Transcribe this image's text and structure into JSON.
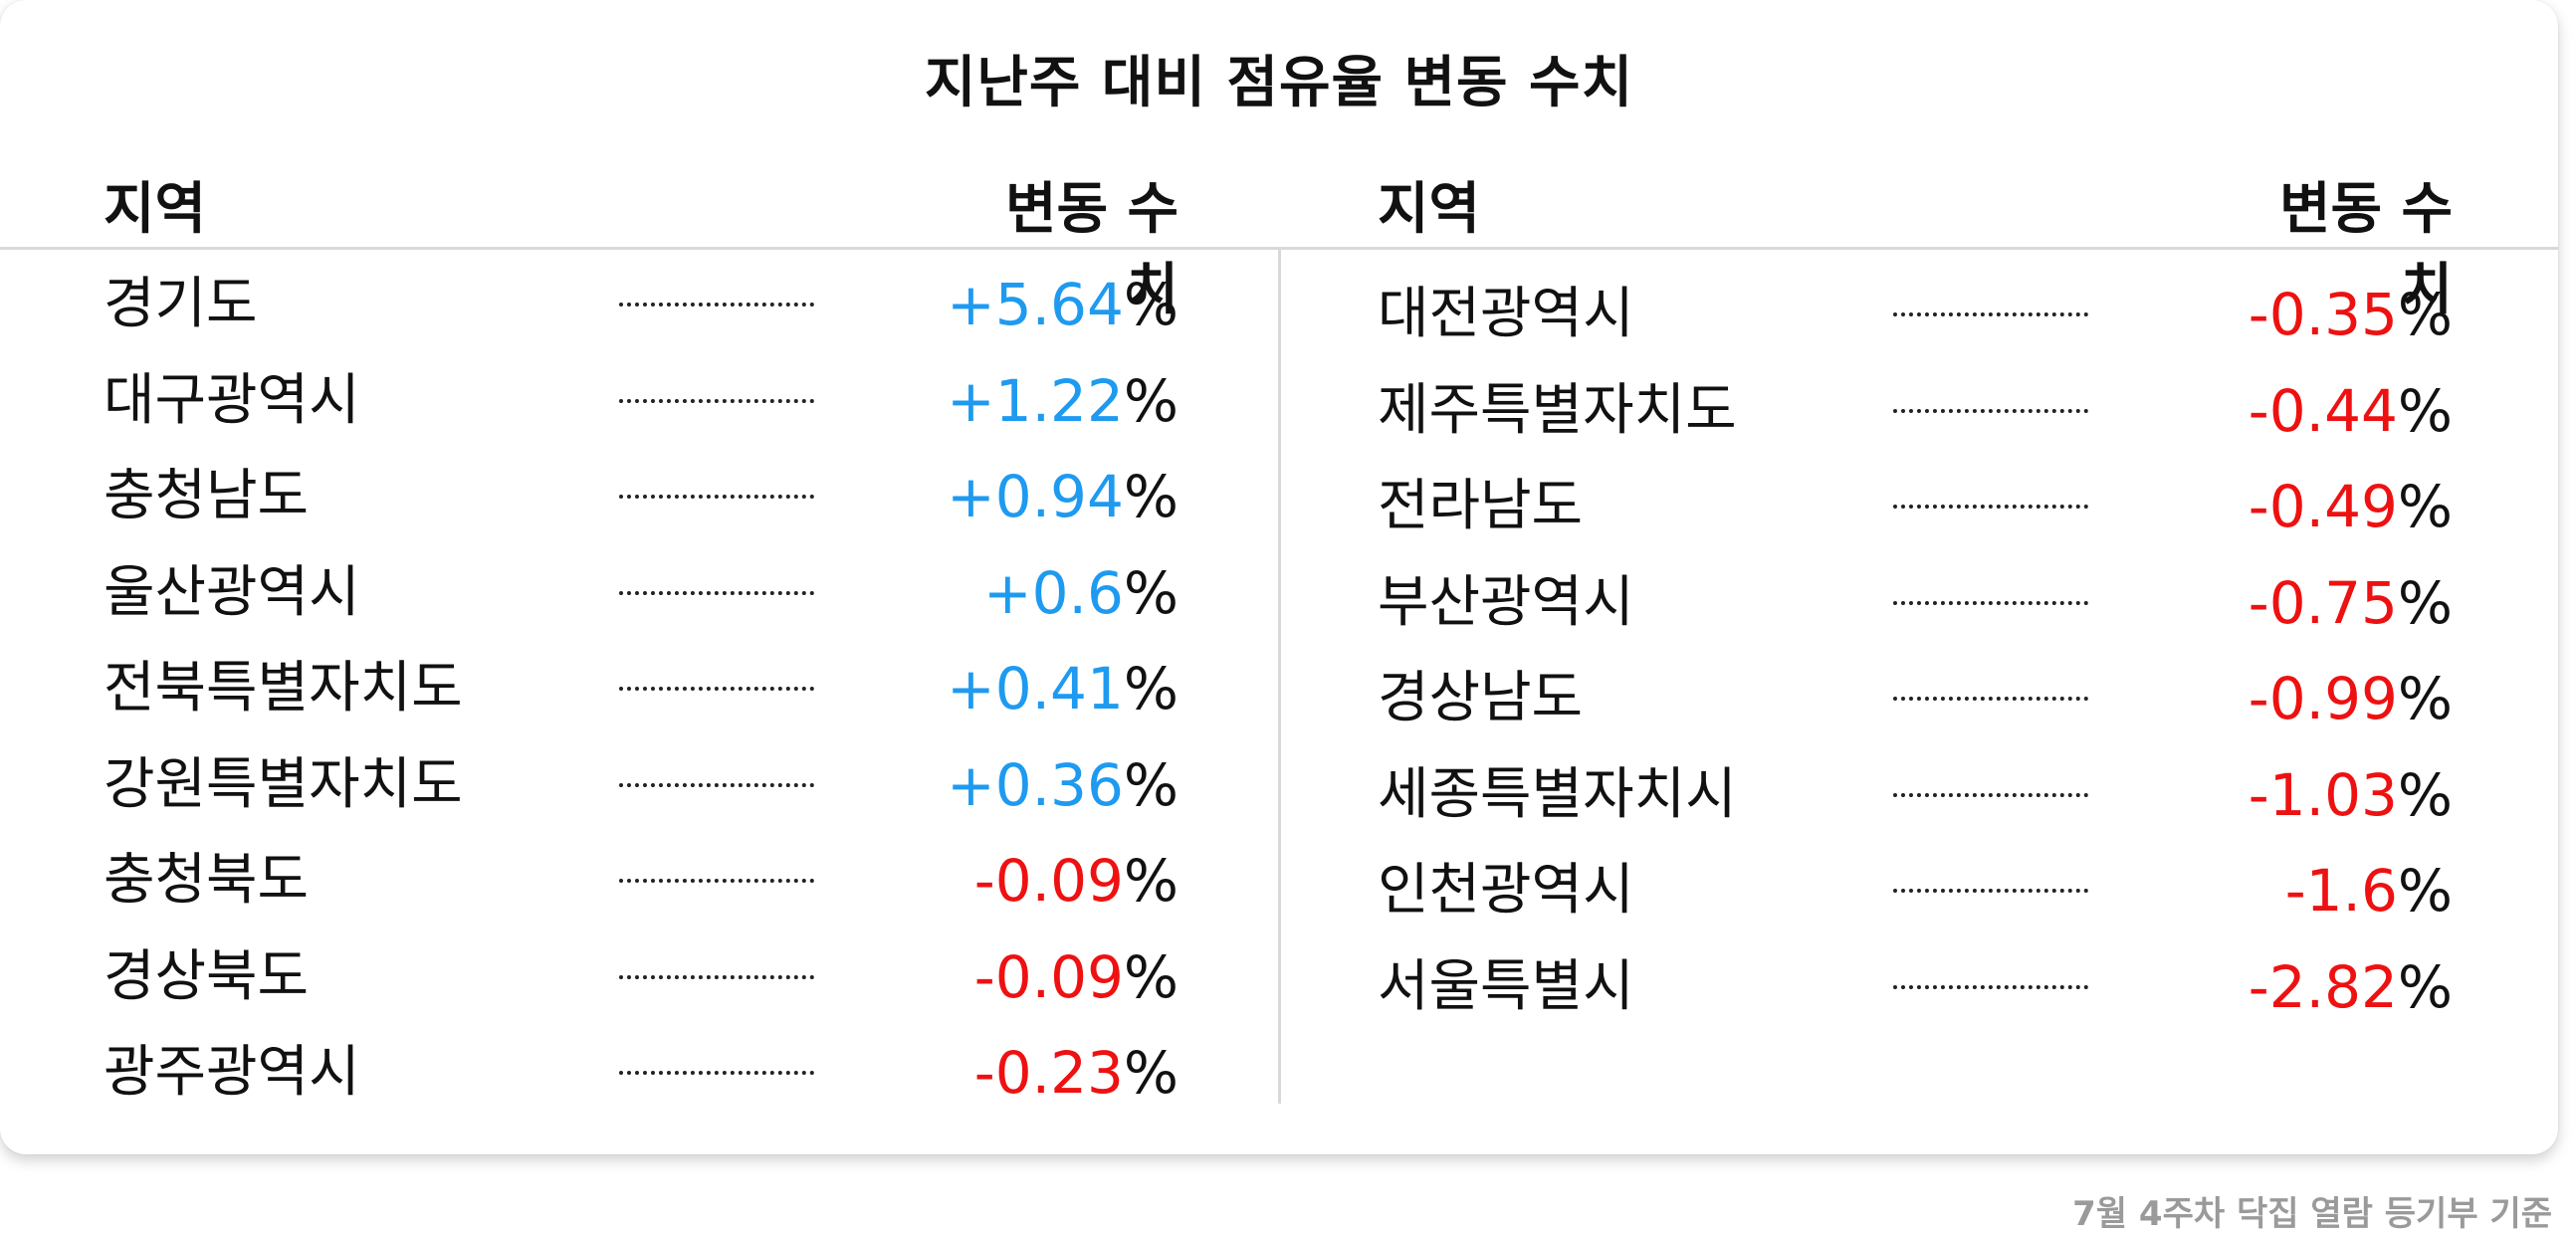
{
  "title": "지난주 대비 점유율 변동 수치",
  "headers": {
    "left": {
      "region": "지역",
      "change": "변동 수치"
    },
    "right": {
      "region": "지역",
      "change": "변동 수치"
    }
  },
  "colors": {
    "positive": "#1e9af0",
    "negative": "#ee1111"
  },
  "unit": "%",
  "left_rows": [
    {
      "region": "경기도",
      "value": "+5.64",
      "sign": "positive"
    },
    {
      "region": "대구광역시",
      "value": "+1.22",
      "sign": "positive"
    },
    {
      "region": "충청남도",
      "value": "+0.94",
      "sign": "positive"
    },
    {
      "region": "울산광역시",
      "value": "+0.6",
      "sign": "positive"
    },
    {
      "region": "전북특별자치도",
      "value": "+0.41",
      "sign": "positive"
    },
    {
      "region": "강원특별자치도",
      "value": "+0.36",
      "sign": "positive"
    },
    {
      "region": "충청북도",
      "value": "-0.09",
      "sign": "negative"
    },
    {
      "region": "경상북도",
      "value": "-0.09",
      "sign": "negative"
    },
    {
      "region": "광주광역시",
      "value": "-0.23",
      "sign": "negative"
    }
  ],
  "right_rows": [
    {
      "region": "대전광역시",
      "value": "-0.35",
      "sign": "negative"
    },
    {
      "region": "제주특별자치도",
      "value": "-0.44",
      "sign": "negative"
    },
    {
      "region": "전라남도",
      "value": "-0.49",
      "sign": "negative"
    },
    {
      "region": "부산광역시",
      "value": "-0.75",
      "sign": "negative"
    },
    {
      "region": "경상남도",
      "value": "-0.99",
      "sign": "negative"
    },
    {
      "region": "세종특별자치시",
      "value": "-1.03",
      "sign": "negative"
    },
    {
      "region": "인천광역시",
      "value": "-1.6",
      "sign": "negative"
    },
    {
      "region": "서울특별시",
      "value": "-2.82",
      "sign": "negative"
    }
  ],
  "footnote": "7월 4주차 닥집 열람 등기부 기준"
}
